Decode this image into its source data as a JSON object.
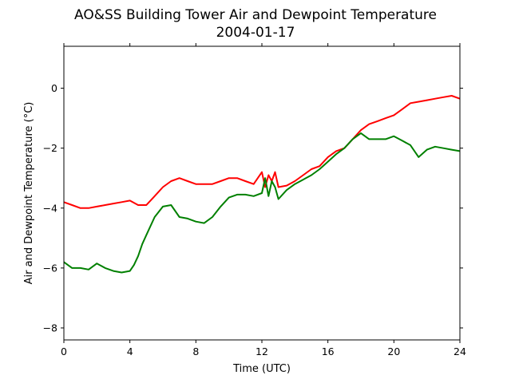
{
  "chart_data": {
    "type": "line",
    "title": "AO&SS Building Tower Air and Dewpoint Temperature",
    "subtitle": "2004-01-17",
    "xlabel": "Time (UTC)",
    "ylabel": "Air and Dewpoint Temperature (°C)",
    "xlim": [
      0,
      24
    ],
    "ylim": [
      -8.4,
      1.4
    ],
    "xticks": [
      0,
      4,
      8,
      12,
      16,
      20,
      24
    ],
    "yticks": [
      -8,
      -6,
      -4,
      -2,
      0
    ],
    "ytick_labels": [
      "−8",
      "−6",
      "−4",
      "−2",
      "0"
    ],
    "grid": false,
    "legend": false,
    "series": [
      {
        "color": "#ff0000",
        "x": [
          0,
          0.5,
          1,
          1.5,
          2,
          2.5,
          3,
          3.5,
          4,
          4.5,
          5,
          5.5,
          6,
          6.5,
          7,
          7.5,
          8,
          8.5,
          9,
          9.5,
          10,
          10.5,
          11,
          11.5,
          12,
          12.2,
          12.4,
          12.6,
          12.8,
          13,
          13.5,
          14,
          14.5,
          15,
          15.5,
          16,
          16.5,
          17,
          17.5,
          18,
          18.5,
          19,
          19.5,
          20,
          20.5,
          21,
          21.5,
          22,
          22.5,
          23,
          23.5,
          24
        ],
        "values": [
          -3.8,
          -3.9,
          -4.0,
          -4.0,
          -3.95,
          -3.9,
          -3.85,
          -3.8,
          -3.75,
          -3.9,
          -3.9,
          -3.6,
          -3.3,
          -3.1,
          -3.0,
          -3.1,
          -3.2,
          -3.2,
          -3.2,
          -3.1,
          -3.0,
          -3.0,
          -3.1,
          -3.2,
          -2.8,
          -3.3,
          -2.9,
          -3.1,
          -2.8,
          -3.3,
          -3.25,
          -3.1,
          -2.9,
          -2.7,
          -2.6,
          -2.3,
          -2.1,
          -2.0,
          -1.7,
          -1.4,
          -1.2,
          -1.1,
          -1.0,
          -0.9,
          -0.7,
          -0.5,
          -0.45,
          -0.4,
          -0.35,
          -0.3,
          -0.25,
          -0.35
        ]
      },
      {
        "color": "#008000",
        "x": [
          0,
          0.5,
          1,
          1.5,
          2,
          2.5,
          3,
          3.5,
          4,
          4.25,
          4.5,
          4.75,
          5,
          5.5,
          6,
          6.5,
          7,
          7.5,
          8,
          8.5,
          9,
          9.5,
          10,
          10.5,
          11,
          11.5,
          12,
          12.2,
          12.4,
          12.6,
          12.8,
          13,
          13.5,
          14,
          14.5,
          15,
          15.5,
          16,
          16.5,
          17,
          17.5,
          18,
          18.5,
          19,
          19.5,
          20,
          20.5,
          21,
          21.5,
          22,
          22.5,
          23,
          23.5,
          24
        ],
        "values": [
          -5.8,
          -6.0,
          -6.0,
          -6.05,
          -5.85,
          -6.0,
          -6.1,
          -6.15,
          -6.1,
          -5.9,
          -5.6,
          -5.2,
          -4.9,
          -4.3,
          -3.95,
          -3.9,
          -4.3,
          -4.35,
          -4.45,
          -4.5,
          -4.3,
          -3.95,
          -3.65,
          -3.55,
          -3.55,
          -3.6,
          -3.5,
          -3.0,
          -3.6,
          -3.1,
          -3.3,
          -3.7,
          -3.4,
          -3.2,
          -3.05,
          -2.9,
          -2.7,
          -2.45,
          -2.2,
          -2.0,
          -1.7,
          -1.5,
          -1.7,
          -1.7,
          -1.7,
          -1.6,
          -1.75,
          -1.9,
          -2.3,
          -2.05,
          -1.95,
          -2.0,
          -2.05,
          -2.1
        ]
      }
    ]
  }
}
